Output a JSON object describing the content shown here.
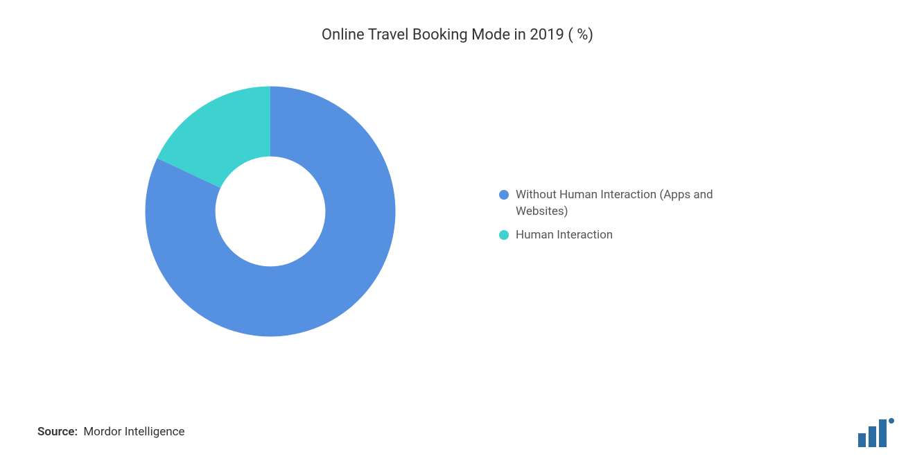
{
  "chart": {
    "type": "donut",
    "title": "Online Travel Booking Mode in 2019 ( %)",
    "title_fontsize": 22,
    "title_color": "#333333",
    "background_color": "#ffffff",
    "inner_radius_ratio": 0.44,
    "slices": [
      {
        "label": "Without Human Interaction (Apps and Websites)",
        "value": 82,
        "color": "#5690e0"
      },
      {
        "label": "Human Interaction",
        "value": 18,
        "color": "#3dd1cf"
      }
    ],
    "legend": {
      "position": "right",
      "marker_shape": "circle",
      "marker_size": 14,
      "label_fontsize": 17,
      "label_color": "#555555"
    }
  },
  "source": {
    "label": "Source:",
    "value": "Mordor Intelligence",
    "fontsize": 17,
    "color": "#333333"
  },
  "logo": {
    "name": "mordor-intelligence-logo",
    "bar_colors": [
      "#2b6ca3",
      "#2b6ca3",
      "#2b6ca3"
    ],
    "dot_color": "#2b6ca3"
  }
}
